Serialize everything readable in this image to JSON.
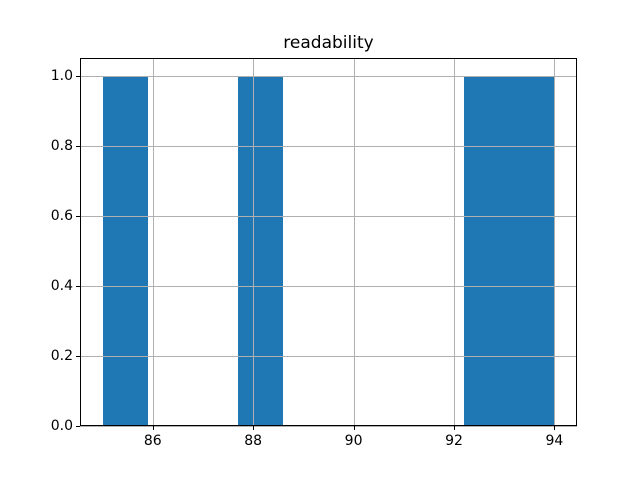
{
  "chart_data": {
    "type": "bar",
    "subtype": "histogram",
    "title": "readability",
    "xlabel": "",
    "ylabel": "",
    "bin_edges": [
      85.0,
      85.9,
      86.8,
      87.7,
      88.6,
      89.5,
      90.4,
      91.3,
      92.2,
      93.1,
      94.0
    ],
    "counts": [
      1,
      0,
      0,
      1,
      0,
      0,
      0,
      0,
      1,
      1
    ],
    "x_ticks": [
      86,
      88,
      90,
      92,
      94
    ],
    "y_ticks": [
      0.0,
      0.2,
      0.4,
      0.6,
      0.8,
      1.0
    ],
    "xlim": [
      84.55,
      94.45
    ],
    "ylim": [
      0,
      1.05
    ],
    "grid": true,
    "grid_above_bars": true,
    "legend": "none",
    "colors": {
      "bar": "#1f77b4",
      "grid": "#b0b0b0",
      "spine": "#000000",
      "text": "#000000",
      "background": "#ffffff"
    }
  }
}
